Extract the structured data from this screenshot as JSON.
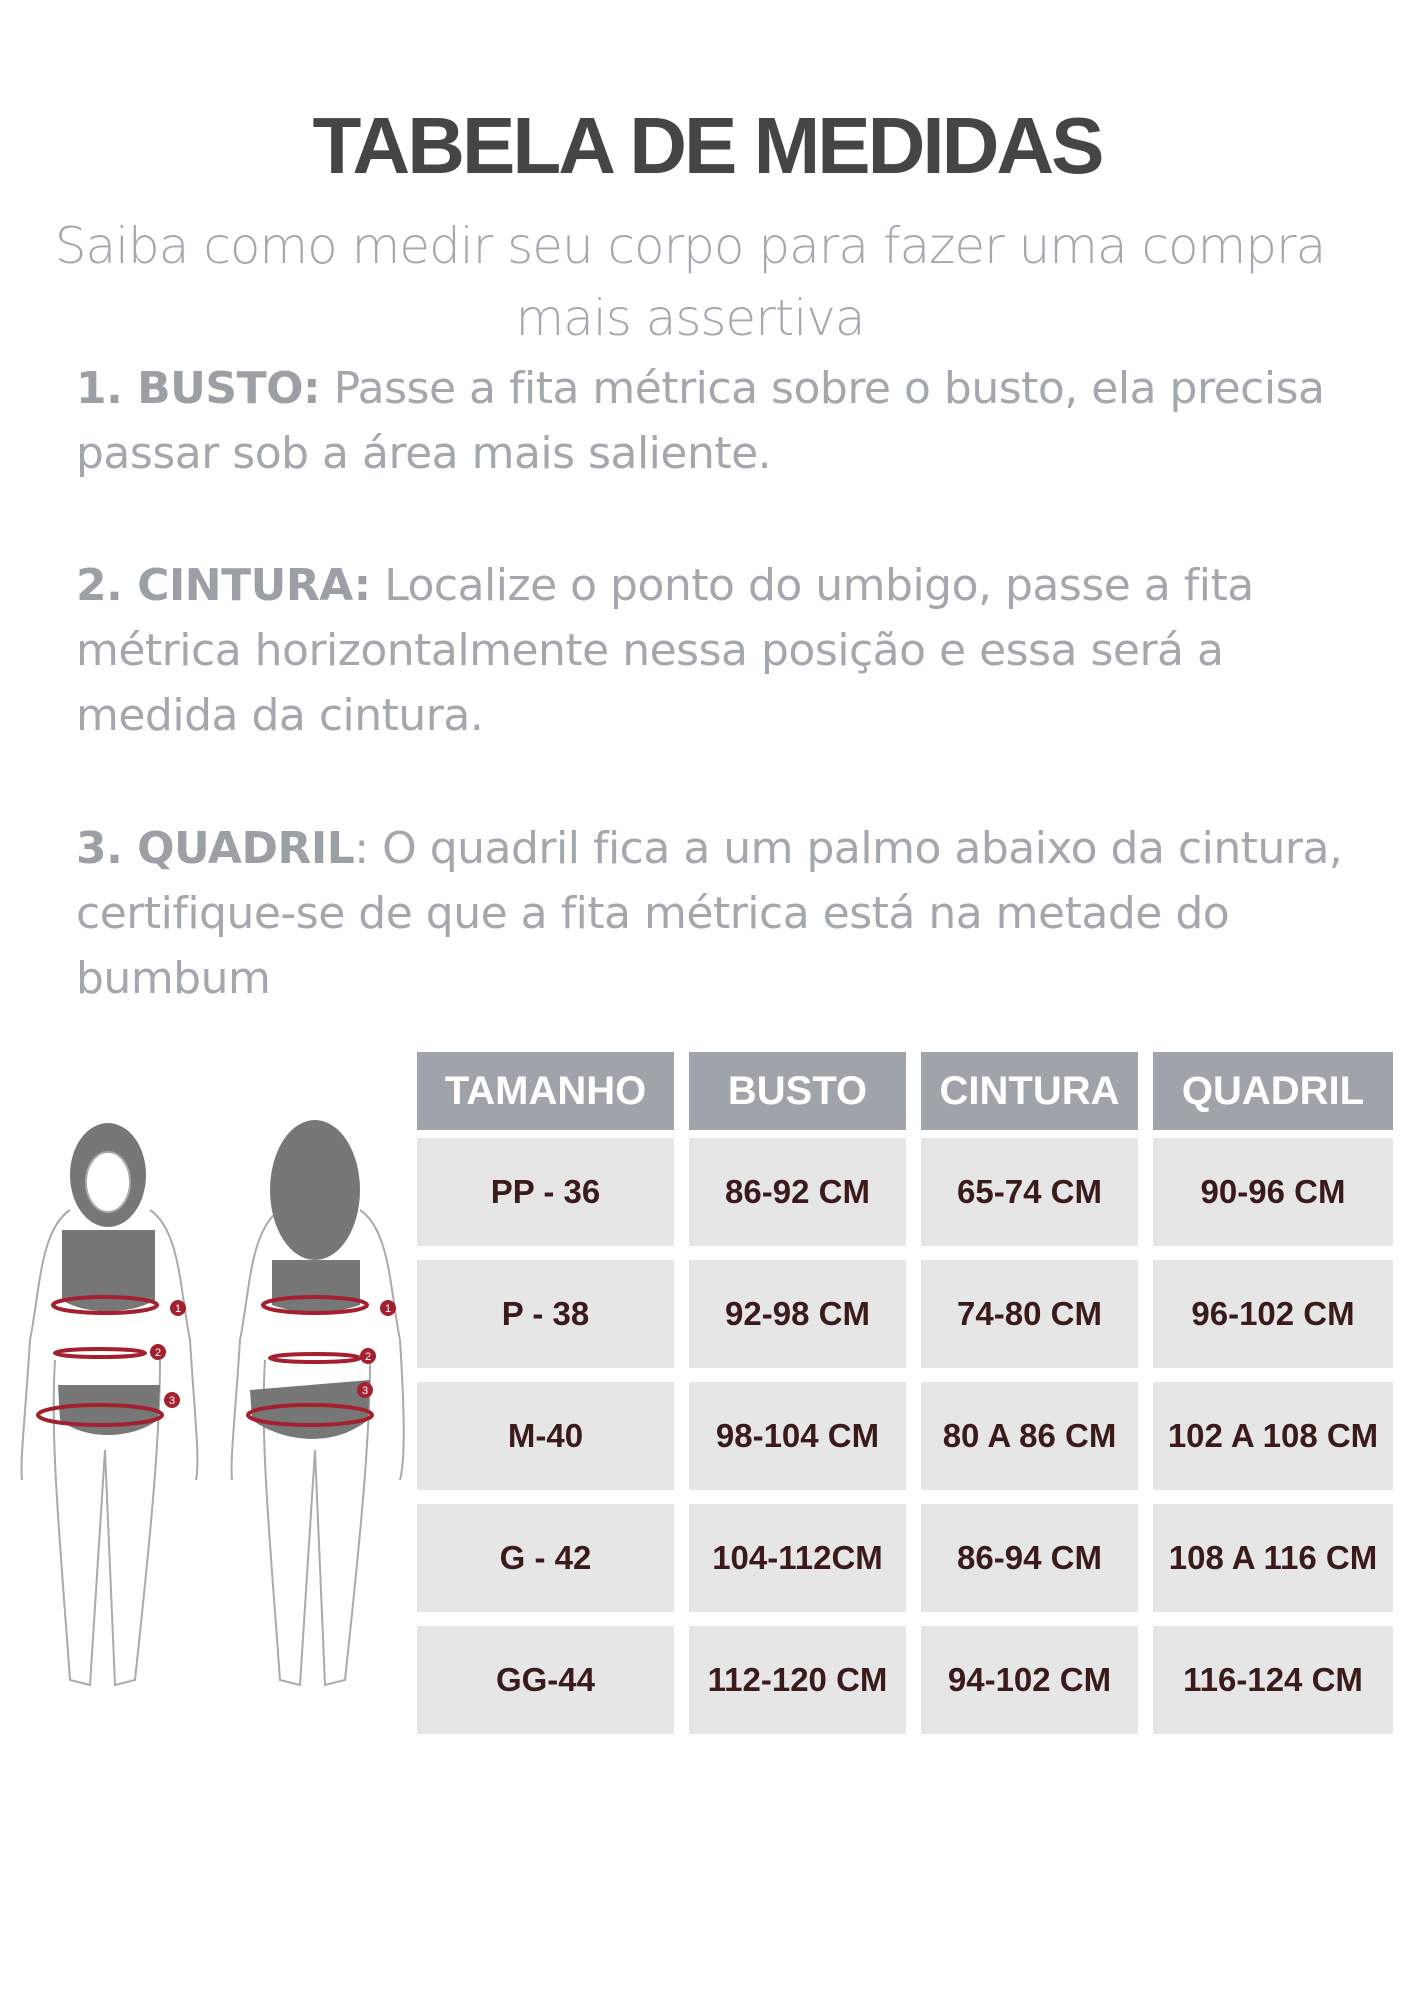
{
  "title": "TABELA DE MEDIDAS",
  "subtitle": "Saiba como medir seu corpo para fazer uma compra mais assertiva",
  "instructions": [
    {
      "label": "1. BUSTO:",
      "text": " Passe a fita métrica sobre o busto, ela precisa passar sob a área mais saliente."
    },
    {
      "label": "2. CINTURA:",
      "text": " Localize o ponto do umbigo, passe a fita métrica horizontalmente nessa posição e essa será a medida da cintura."
    },
    {
      "label": "3. QUADRIL",
      "text": ": O quadril fica a um palmo abaixo da cintura, certifique-se de que a fita métrica está na metade do bumbum"
    }
  ],
  "figure": {
    "markers": [
      "1",
      "2",
      "3"
    ],
    "accent": "#a3202e"
  },
  "table": {
    "headers": [
      "TAMANHO",
      "BUSTO",
      "CINTURA",
      "QUADRIL"
    ],
    "rows": [
      [
        "PP - 36",
        "86-92 CM",
        "65-74 CM",
        "90-96 CM"
      ],
      [
        "P - 38",
        "92-98 CM",
        "74-80 CM",
        "96-102 CM"
      ],
      [
        "M-40",
        "98-104 CM",
        "80 A 86 CM",
        "102 A 108 CM"
      ],
      [
        "G - 42",
        "104-112CM",
        "86-94 CM",
        "108 A 116 CM"
      ],
      [
        "GG-44",
        "112-120 CM",
        "94-102 CM",
        "116-124 CM"
      ]
    ],
    "header_color": "#9ea4aa",
    "cell_color": "#e6e6e6",
    "text_color": "#3b1a1a"
  }
}
